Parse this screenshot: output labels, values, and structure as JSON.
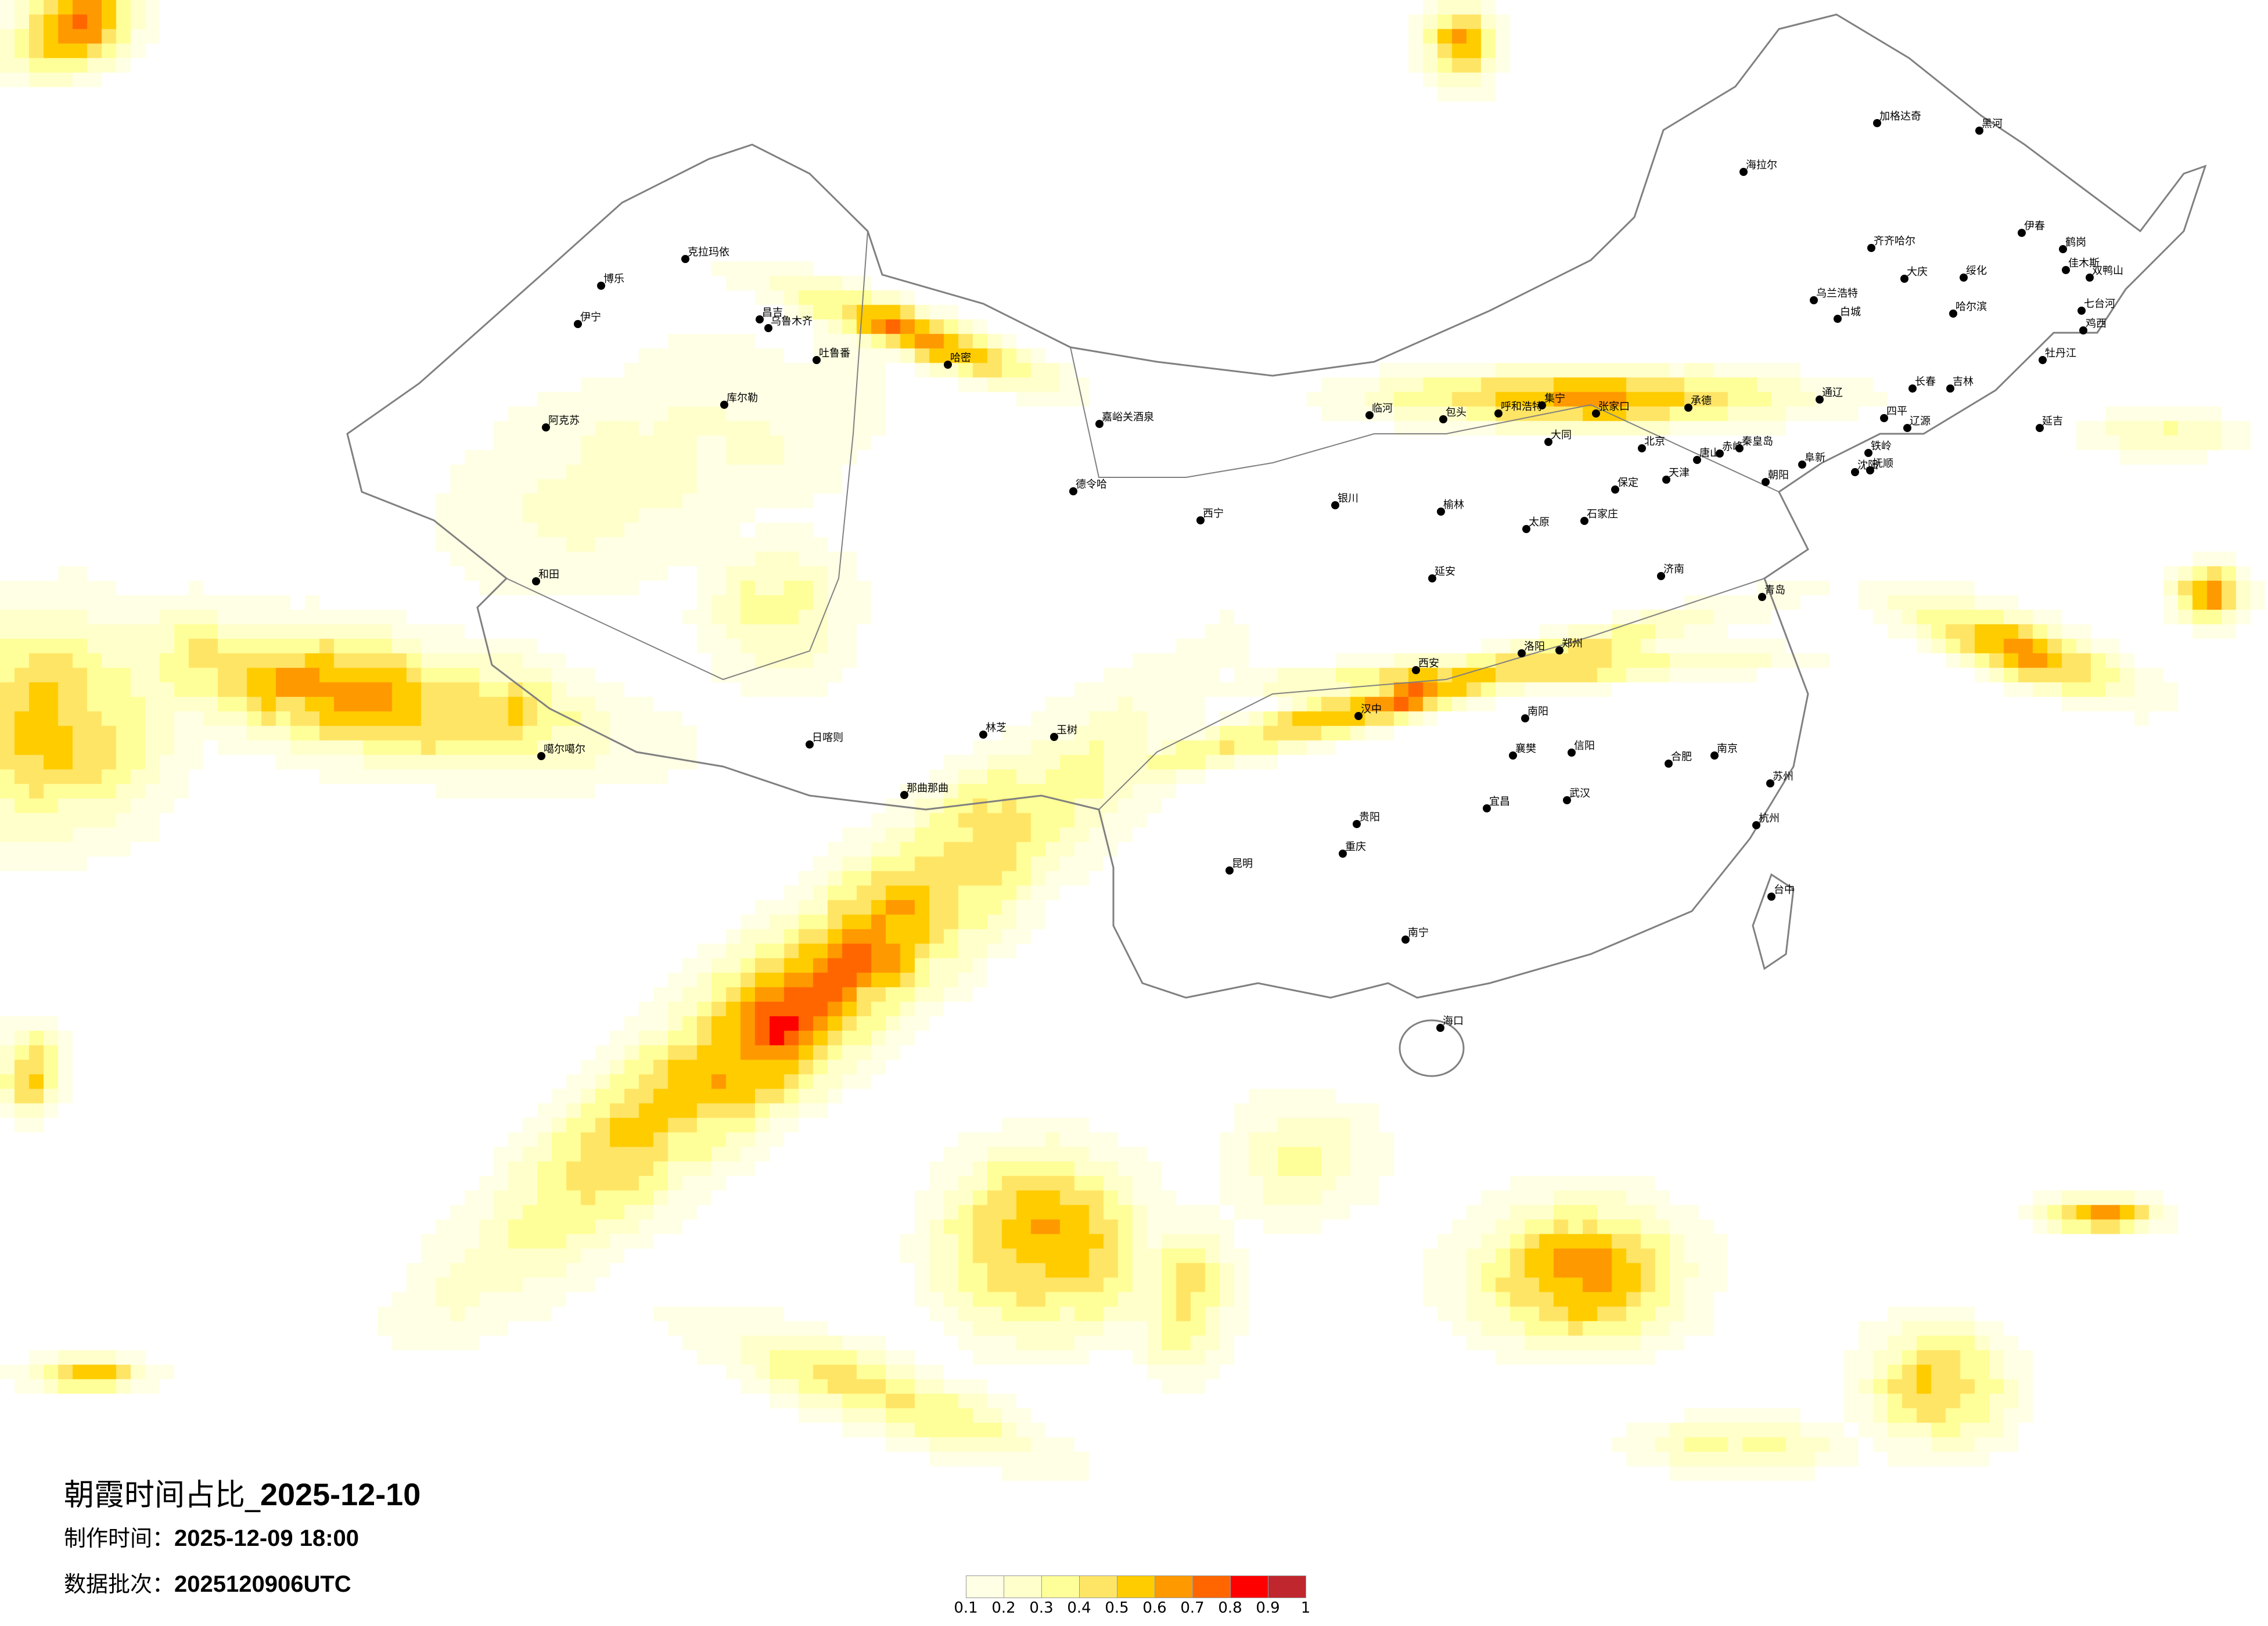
{
  "title": {
    "prefix": "朝霞时间占比_",
    "date": "2025-12-10"
  },
  "production_time": {
    "label": "制作时间：",
    "value": "2025-12-09 18:00"
  },
  "data_batch": {
    "label": "数据批次：",
    "value": "2025120906UTC"
  },
  "legend": {
    "ticks": [
      "0.1",
      "0.2",
      "0.3",
      "0.4",
      "0.5",
      "0.6",
      "0.7",
      "0.8",
      "0.9",
      "1"
    ],
    "colors": [
      "#FFFFE5",
      "#FFFFCC",
      "#FFFF99",
      "#FFE566",
      "#FFCC00",
      "#FF9900",
      "#FF6600",
      "#FF0000",
      "#C0262D"
    ]
  },
  "boundary_color": "#808080",
  "cities": [
    "加格达奇",
    "黑河",
    "海拉尔",
    "齐齐哈尔",
    "大庆",
    "绥化",
    "伊春",
    "鹤岗",
    "佳木斯",
    "双鸭山",
    "哈尔滨",
    "七台河",
    "鸡西",
    "牡丹江",
    "乌兰浩特",
    "白城",
    "长春",
    "吉林",
    "通辽",
    "四平",
    "辽源",
    "延吉",
    "赤峰",
    "阜新",
    "铁岭",
    "沈阳",
    "抚顺",
    "朝阳",
    "克拉玛依",
    "博乐",
    "伊宁",
    "昌吉",
    "乌鲁木齐",
    "吐鲁番",
    "哈密",
    "库尔勒",
    "阿克苏",
    "和田",
    "噶尔噶尔",
    "那曲那曲",
    "玉树",
    "临河",
    "包头",
    "呼和浩特",
    "集宁",
    "张家口",
    "承德",
    "大同",
    "北京",
    "唐山",
    "秦皇岛",
    "天津",
    "保定",
    "石家庄",
    "太原",
    "银川",
    "榆林",
    "延安",
    "济南",
    "青岛",
    "郑州",
    "洛阳",
    "西安",
    "汉中",
    "南阳",
    "合肥",
    "南京",
    "苏州",
    "杭州",
    "武汉",
    "宜昌",
    "重庆",
    "襄樊",
    "信阳",
    "海口",
    "南宁",
    "台中",
    "昆明",
    "贵阳",
    "日喀则",
    "林芝",
    "德令哈",
    "嘉峪关酒泉",
    "西宁"
  ]
}
